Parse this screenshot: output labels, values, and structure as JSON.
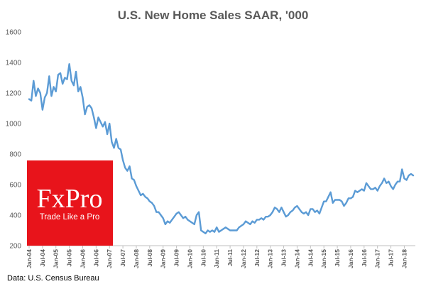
{
  "chart_data": {
    "type": "line",
    "title": "U.S. New Home Sales SAAR, '000",
    "xlabel": "",
    "ylabel": "",
    "ylim": [
      200,
      1600
    ],
    "yticks": [
      200,
      400,
      600,
      800,
      1000,
      1200,
      1400,
      1600
    ],
    "grid": false,
    "legend": "none",
    "series_color": "#5b9bd5",
    "x_tick_labels": [
      "Jan-04",
      "Jul-04",
      "Jan-05",
      "Jul-05",
      "Jan-06",
      "Jul-06",
      "Jan-07",
      "Jul-07",
      "Jan-08",
      "Jul-08",
      "Jan-09",
      "Jul-09",
      "Jan-10",
      "Jul-10",
      "Jan-11",
      "Jul-11",
      "Jan-12",
      "Jul-12",
      "Jan-13",
      "Jul-13",
      "Jan-14",
      "Jul-14",
      "Jan-15",
      "Jul-15",
      "Jan-16",
      "Jul-16",
      "Jan-17",
      "Jul-17",
      "Jan-18"
    ],
    "start": "Jan-04",
    "frequency": "monthly",
    "values": [
      1160,
      1150,
      1280,
      1180,
      1230,
      1200,
      1090,
      1170,
      1200,
      1310,
      1180,
      1240,
      1210,
      1320,
      1330,
      1260,
      1300,
      1290,
      1390,
      1280,
      1250,
      1340,
      1210,
      1240,
      1170,
      1060,
      1110,
      1120,
      1100,
      1040,
      970,
      1040,
      1010,
      980,
      1010,
      930,
      1000,
      880,
      840,
      900,
      840,
      830,
      760,
      710,
      690,
      720,
      640,
      630,
      590,
      560,
      530,
      540,
      520,
      510,
      490,
      480,
      460,
      420,
      420,
      400,
      380,
      340,
      360,
      350,
      370,
      390,
      410,
      420,
      400,
      380,
      390,
      370,
      360,
      350,
      340,
      400,
      420,
      300,
      290,
      280,
      300,
      290,
      300,
      290,
      320,
      290,
      300,
      310,
      320,
      310,
      300,
      300,
      300,
      300,
      320,
      330,
      340,
      360,
      350,
      340,
      360,
      350,
      370,
      370,
      380,
      370,
      390,
      390,
      400,
      420,
      450,
      440,
      420,
      450,
      420,
      390,
      400,
      420,
      430,
      450,
      460,
      440,
      420,
      410,
      420,
      400,
      440,
      440,
      420,
      430,
      410,
      450,
      490,
      490,
      520,
      550,
      480,
      500,
      500,
      500,
      490,
      460,
      480,
      510,
      510,
      520,
      560,
      550,
      560,
      570,
      560,
      610,
      590,
      570,
      570,
      580,
      560,
      590,
      610,
      640,
      610,
      620,
      590,
      570,
      600,
      620,
      620,
      700,
      640,
      630,
      660,
      670,
      660
    ]
  },
  "source": "Data: U.S. Census Bureau",
  "logo": {
    "brand": "FxPro",
    "tagline": "Trade Like a Pro",
    "color": "#e8141b"
  }
}
